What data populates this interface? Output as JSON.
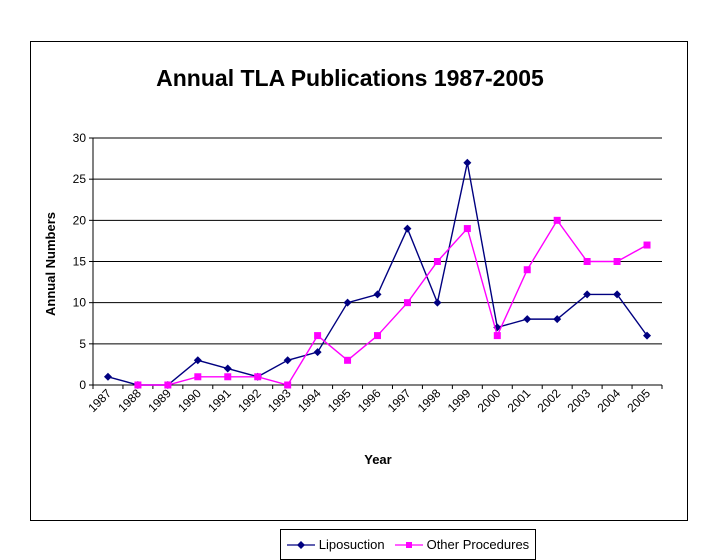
{
  "chart_data": {
    "type": "line",
    "title": "Annual TLA Publications 1987-2005",
    "xlabel": "Year",
    "ylabel": "Annual Numbers",
    "categories": [
      "1987",
      "1988",
      "1989",
      "1990",
      "1991",
      "1992",
      "1993",
      "1994",
      "1995",
      "1996",
      "1997",
      "1998",
      "1999",
      "2000",
      "2001",
      "2002",
      "2003",
      "2004",
      "2005"
    ],
    "ylim": [
      0,
      30
    ],
    "yticks": [
      0,
      5,
      10,
      15,
      20,
      25,
      30
    ],
    "grid": true,
    "legend_position": "bottom",
    "series": [
      {
        "name": "Liposuction",
        "color": "#000080",
        "marker": "diamond",
        "values": [
          1,
          0,
          0,
          3,
          2,
          1,
          3,
          4,
          10,
          11,
          19,
          10,
          27,
          7,
          8,
          8,
          11,
          11,
          6
        ]
      },
      {
        "name": "Other Procedures",
        "color": "#ff00ff",
        "marker": "square",
        "values": [
          null,
          0,
          0,
          1,
          1,
          1,
          0,
          6,
          3,
          6,
          10,
          15,
          19,
          6,
          14,
          20,
          15,
          15,
          17
        ]
      }
    ]
  }
}
